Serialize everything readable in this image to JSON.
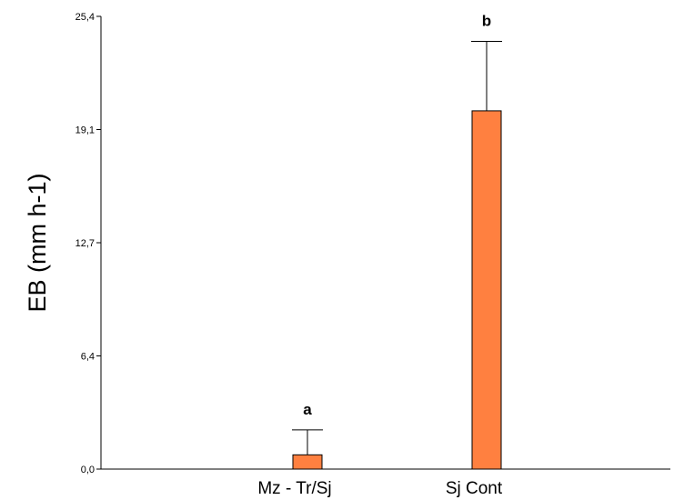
{
  "chart_data": {
    "type": "bar",
    "title": "",
    "xlabel": "",
    "ylabel": "EB (mm h-1)",
    "ylim": [
      0,
      25.4
    ],
    "yticks": [
      "0,0",
      "6,4",
      "12,7",
      "19,1",
      "25,4"
    ],
    "ytick_values": [
      0,
      6.35,
      12.7,
      19.05,
      25.4
    ],
    "categories": [
      "Mz - Tr/Sj",
      "Sj Cont"
    ],
    "values": [
      0.8,
      20.1
    ],
    "error_upper": [
      2.2,
      24.0
    ],
    "significance_labels": [
      "a",
      "b"
    ],
    "grid": false,
    "legend": "none",
    "bar_color": "#FF8040",
    "bar_edge_color": "#000000"
  }
}
